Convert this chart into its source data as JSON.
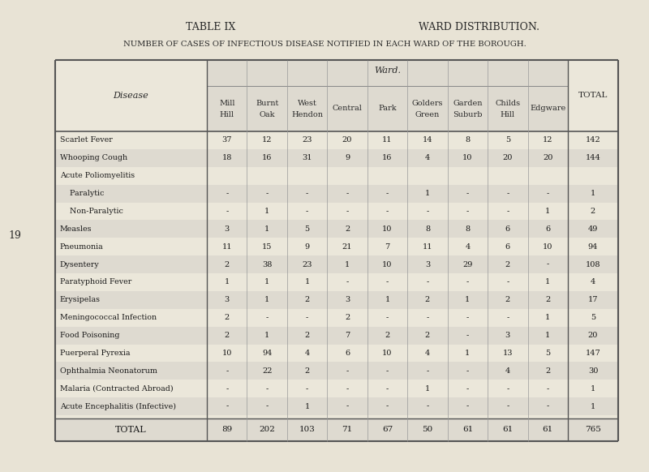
{
  "title_left": "TABLE IX",
  "title_right": "WARD DISTRIBUTION.",
  "subtitle": "NUMBER OF CASES OF INFECTIOUS DISEASE NOTIFIED IN EACH WARD OF THE BOROUGH.",
  "bg_color": "#e8e3d5",
  "table_bg_light": "#ebe7da",
  "table_bg_dark": "#dedad0",
  "header_ward": "Ward.",
  "col_headers_line1": [
    "Mill",
    "Burnt",
    "West",
    "Central",
    "Park",
    "Golders",
    "Garden",
    "Childs",
    "Edgware"
  ],
  "col_headers_line2": [
    "Hill",
    "Oak",
    "Hendon",
    "",
    "",
    "Green",
    "Suburb",
    "Hill",
    ""
  ],
  "col_total": "TOTAL",
  "disease_col": "Disease",
  "rows": [
    {
      "disease": "Scarlet Fever",
      "indent": false,
      "values": [
        "37",
        "12",
        "23",
        "20",
        "11",
        "14",
        "8",
        "5",
        "12",
        "142"
      ]
    },
    {
      "disease": "Whooping Cough",
      "indent": false,
      "values": [
        "18",
        "16",
        "31",
        "9",
        "16",
        "4",
        "10",
        "20",
        "20",
        "144"
      ]
    },
    {
      "disease": "Acute Poliomyelitis",
      "indent": false,
      "values": [
        "",
        "",
        "",
        "",
        "",
        "",
        "",
        "",
        "",
        ""
      ]
    },
    {
      "disease": "    Paralytic",
      "indent": true,
      "values": [
        "-",
        "-",
        "-",
        "-",
        "-",
        "1",
        "-",
        "-",
        "-",
        "1"
      ]
    },
    {
      "disease": "    Non-Paralytic",
      "indent": true,
      "values": [
        "-",
        "1",
        "-",
        "-",
        "-",
        "-",
        "-",
        "-",
        "1",
        "2"
      ]
    },
    {
      "disease": "Measles",
      "indent": false,
      "values": [
        "3",
        "1",
        "5",
        "2",
        "10",
        "8",
        "8",
        "6",
        "6",
        "49"
      ]
    },
    {
      "disease": "Pneumonia",
      "indent": false,
      "values": [
        "11",
        "15",
        "9",
        "21",
        "7",
        "11",
        "4",
        "6",
        "10",
        "94"
      ]
    },
    {
      "disease": "Dysentery",
      "indent": false,
      "values": [
        "2",
        "38",
        "23",
        "1",
        "10",
        "3",
        "29",
        "2",
        "-",
        "108"
      ]
    },
    {
      "disease": "Paratyphoid Fever",
      "indent": false,
      "values": [
        "1",
        "1",
        "1",
        "-",
        "-",
        "-",
        "-",
        "-",
        "1",
        "4"
      ]
    },
    {
      "disease": "Erysipelas",
      "indent": false,
      "values": [
        "3",
        "1",
        "2",
        "3",
        "1",
        "2",
        "1",
        "2",
        "2",
        "17"
      ]
    },
    {
      "disease": "Meningococcal Infection",
      "indent": false,
      "values": [
        "2",
        "-",
        "-",
        "2",
        "-",
        "-",
        "-",
        "-",
        "1",
        "5"
      ]
    },
    {
      "disease": "Food Poisoning",
      "indent": false,
      "values": [
        "2",
        "1",
        "2",
        "7",
        "2",
        "2",
        "-",
        "3",
        "1",
        "20"
      ]
    },
    {
      "disease": "Puerperal Pyrexia",
      "indent": false,
      "values": [
        "10",
        "94",
        "4",
        "6",
        "10",
        "4",
        "1",
        "13",
        "5",
        "147"
      ]
    },
    {
      "disease": "Ophthalmia Neonatorum",
      "indent": false,
      "values": [
        "-",
        "22",
        "2",
        "-",
        "-",
        "-",
        "-",
        "4",
        "2",
        "30"
      ]
    },
    {
      "disease": "Malaria (Contracted Abroad)",
      "indent": false,
      "values": [
        "-",
        "-",
        "-",
        "-",
        "-",
        "1",
        "-",
        "-",
        "-",
        "1"
      ]
    },
    {
      "disease": "Acute Encephalitis (Infective)",
      "indent": false,
      "values": [
        "-",
        "-",
        "1",
        "-",
        "-",
        "-",
        "-",
        "-",
        "-",
        "1"
      ]
    }
  ],
  "total_row": {
    "disease": "TOTAL",
    "values": [
      "89",
      "202",
      "103",
      "71",
      "67",
      "50",
      "61",
      "61",
      "61",
      "765"
    ]
  },
  "side_label": "19"
}
